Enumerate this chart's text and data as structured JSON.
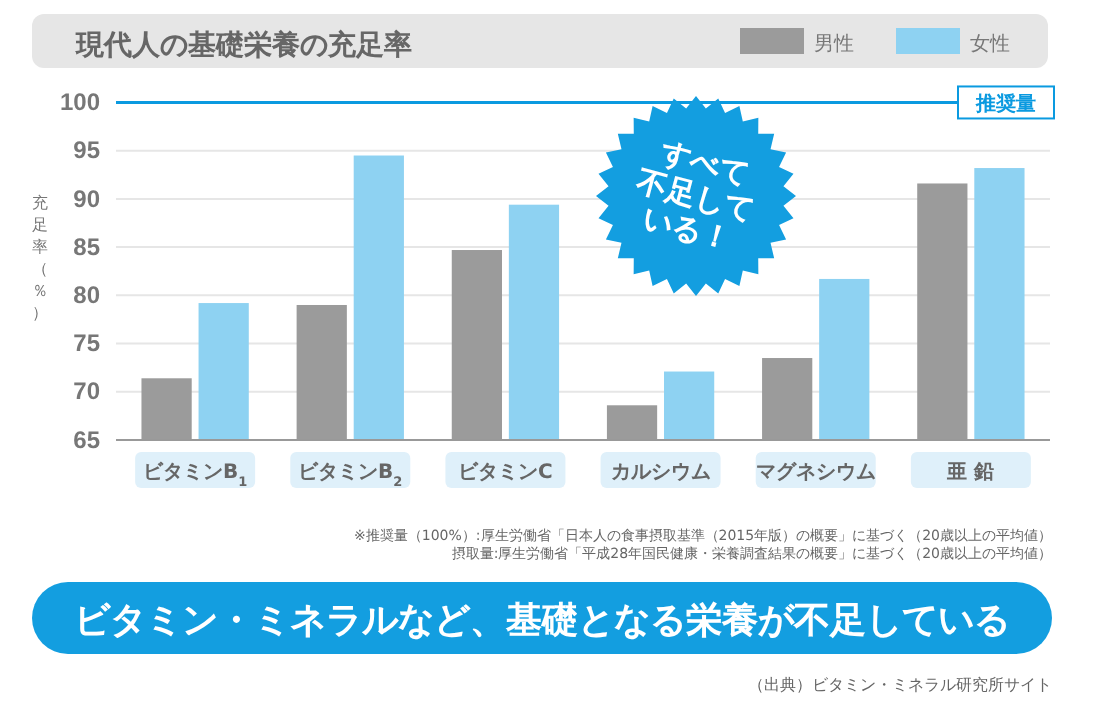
{
  "chart_data": {
    "type": "bar",
    "title": "現代人の基礎栄養の充足率",
    "ylabel": "充足率（％）",
    "categories": [
      "ビタミンB$_{1}$",
      "ビタミンB$_{2}$",
      "ビタミンC",
      "カルシウム",
      "マグネシウム",
      "亜 鉛"
    ],
    "series": [
      {
        "name": "男性",
        "color": "#9b9b9b",
        "values": [
          71.4,
          79.0,
          84.7,
          68.6,
          73.5,
          91.6
        ]
      },
      {
        "name": "女性",
        "color": "#8ed2f2",
        "values": [
          79.2,
          94.5,
          89.4,
          72.1,
          81.7,
          93.2
        ]
      }
    ],
    "ylim": [
      65,
      101.5
    ],
    "yticks": [
      65,
      70,
      75,
      80,
      85,
      90,
      95,
      100
    ],
    "grid": "y",
    "legend": "top right",
    "ref_lines": [
      {
        "axis": "y",
        "value": 100,
        "label": "推奨量",
        "color": "#0a9ae0"
      }
    ],
    "annotations": [
      "すべて不足している！",
      "※推奨量（100%）:厚生労働省「日本人の食事摂取基準（2015年版）の概要」に基づく（20歳以上の平均値）",
      "摂取量:厚生労働省「平成28年国民健康・栄養調査結果の概要」に基づく（20歳以上の平均値）",
      "ビタミン・ミネラルなど、基礎となる栄養が不足している",
      "（出典）ビタミン・ミネラル研究所サイト"
    ]
  }
}
